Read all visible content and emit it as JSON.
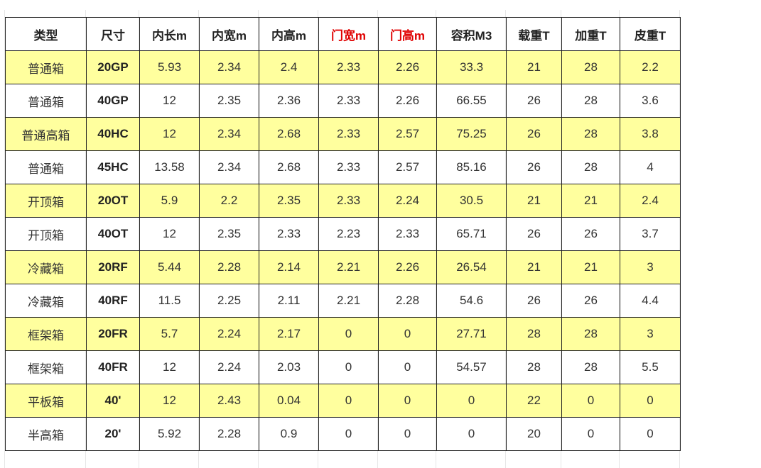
{
  "table": {
    "headers": [
      {
        "label": "类型",
        "highlight": false
      },
      {
        "label": "尺寸",
        "highlight": false
      },
      {
        "label": "内长m",
        "highlight": false
      },
      {
        "label": "内宽m",
        "highlight": false
      },
      {
        "label": "内高m",
        "highlight": false
      },
      {
        "label": "门宽m",
        "highlight": true
      },
      {
        "label": "门高m",
        "highlight": true
      },
      {
        "label": "容积M3",
        "highlight": false
      },
      {
        "label": "载重T",
        "highlight": false
      },
      {
        "label": "加重T",
        "highlight": false
      },
      {
        "label": "皮重T",
        "highlight": false
      }
    ],
    "rows": [
      [
        "普通箱",
        "20GP",
        "5.93",
        "2.34",
        "2.4",
        "2.33",
        "2.26",
        "33.3",
        "21",
        "28",
        "2.2"
      ],
      [
        "普通箱",
        "40GP",
        "12",
        "2.35",
        "2.36",
        "2.33",
        "2.26",
        "66.55",
        "26",
        "28",
        "3.6"
      ],
      [
        "普通高箱",
        "40HC",
        "12",
        "2.34",
        "2.68",
        "2.33",
        "2.57",
        "75.25",
        "26",
        "28",
        "3.8"
      ],
      [
        "普通箱",
        "45HC",
        "13.58",
        "2.34",
        "2.68",
        "2.33",
        "2.57",
        "85.16",
        "26",
        "28",
        "4"
      ],
      [
        "开顶箱",
        "20OT",
        "5.9",
        "2.2",
        "2.35",
        "2.33",
        "2.24",
        "30.5",
        "21",
        "21",
        "2.4"
      ],
      [
        "开顶箱",
        "40OT",
        "12",
        "2.35",
        "2.33",
        "2.23",
        "2.33",
        "65.71",
        "26",
        "26",
        "3.7"
      ],
      [
        "冷藏箱",
        "20RF",
        "5.44",
        "2.28",
        "2.14",
        "2.21",
        "2.26",
        "26.54",
        "21",
        "21",
        "3"
      ],
      [
        "冷藏箱",
        "40RF",
        "11.5",
        "2.25",
        "2.11",
        "2.21",
        "2.28",
        "54.6",
        "26",
        "26",
        "4.4"
      ],
      [
        "框架箱",
        "20FR",
        "5.7",
        "2.24",
        "2.17",
        "0",
        "0",
        "27.71",
        "28",
        "28",
        "3"
      ],
      [
        "框架箱",
        "40FR",
        "12",
        "2.24",
        "2.03",
        "0",
        "0",
        "54.57",
        "28",
        "28",
        "5.5"
      ],
      [
        "平板箱",
        "40'",
        "12",
        "2.43",
        "0.04",
        "0",
        "0",
        "0",
        "22",
        "0",
        "0"
      ],
      [
        "半高箱",
        "20'",
        "5.92",
        "2.28",
        "0.9",
        "0",
        "0",
        "0",
        "20",
        "0",
        "0"
      ]
    ],
    "colors": {
      "highlight_row": "#ffff9e",
      "header_red": "#e00000",
      "border": "#222222"
    }
  }
}
